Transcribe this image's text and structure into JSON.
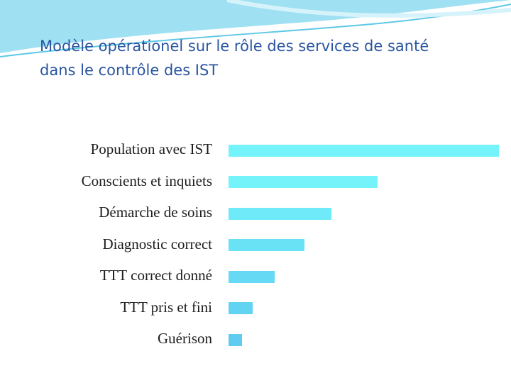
{
  "slide": {
    "title_line1": "Modèle opérationel sur le rôle des services de santé",
    "title_line2": "dans le contrôle des IST",
    "accent_color": "#2a55a0",
    "wave_colors": [
      "#5ec8e6",
      "#9fe0f2",
      "#d6f3fb"
    ]
  },
  "chart_data": {
    "type": "bar",
    "orientation": "horizontal",
    "categories": [
      "Population avec IST",
      "Conscients et inquiets",
      "Démarche de soins",
      "Diagnostic correct",
      "TTT correct donné",
      "TTT pris et fini",
      "Guérison"
    ],
    "values": [
      100,
      55,
      38,
      28,
      17,
      9,
      5
    ],
    "bar_colors": [
      "#74f4fa",
      "#74f4fa",
      "#6eeaf8",
      "#6ae2f6",
      "#66daf4",
      "#63d3f2",
      "#60cdf0"
    ],
    "grid": false
  }
}
